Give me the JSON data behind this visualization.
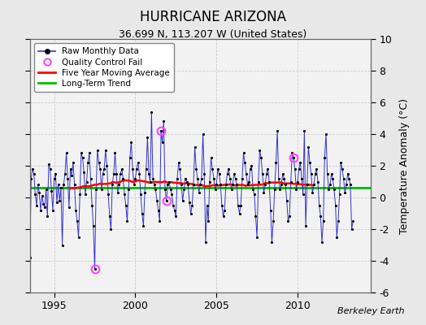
{
  "title": "HURRICANE ARIZONA",
  "subtitle": "36.699 N, 113.207 W (United States)",
  "ylabel": "Temperature Anomaly (°C)",
  "watermark": "Berkeley Earth",
  "ylim": [
    -6,
    10
  ],
  "xlim": [
    1993.5,
    2014.5
  ],
  "xticks": [
    1995,
    2000,
    2005,
    2010
  ],
  "yticks": [
    -6,
    -4,
    -2,
    0,
    2,
    4,
    6,
    8,
    10
  ],
  "long_term_trend": 0.6,
  "bg_color": "#e8e8e8",
  "plot_bg_color": "#f2f2f2",
  "raw_color": "#3333cc",
  "ma_color": "#ff0000",
  "trend_color": "#00bb00",
  "qc_color": "#ff44ff",
  "raw_monthly": [
    -3.8,
    1.2,
    1.8,
    1.5,
    0.2,
    -0.5,
    0.8,
    0.3,
    -0.8,
    0.1,
    -0.4,
    -0.6,
    0.5,
    -1.2,
    2.1,
    1.8,
    0.4,
    -0.8,
    1.2,
    1.5,
    -0.3,
    0.8,
    -0.2,
    0.6,
    -3.0,
    0.8,
    1.5,
    2.8,
    1.2,
    -0.6,
    1.8,
    1.4,
    2.2,
    0.8,
    -0.8,
    -1.5,
    -2.5,
    0.2,
    2.8,
    2.5,
    1.6,
    0.2,
    1.0,
    2.2,
    2.8,
    1.2,
    -0.5,
    -1.8,
    -4.5,
    0.5,
    3.0,
    2.2,
    1.8,
    0.5,
    1.5,
    1.8,
    3.0,
    2.0,
    0.2,
    -1.2,
    -2.0,
    0.8,
    1.5,
    2.8,
    1.5,
    0.3,
    0.8,
    1.5,
    1.8,
    1.2,
    0.2,
    -0.5,
    -1.5,
    0.5,
    2.5,
    3.5,
    1.8,
    0.8,
    1.2,
    1.8,
    2.2,
    1.5,
    0.2,
    -1.0,
    -1.8,
    0.3,
    1.8,
    3.8,
    1.5,
    1.0,
    5.4,
    1.2,
    0.8,
    0.5,
    -0.2,
    -0.8,
    -1.5,
    4.2,
    3.5,
    4.8,
    0.5,
    -0.2,
    0.8,
    1.0,
    0.5,
    0.2,
    -0.5,
    -0.8,
    -1.2,
    1.2,
    2.2,
    1.8,
    0.8,
    -0.2,
    0.5,
    1.2,
    1.0,
    0.8,
    -0.3,
    -1.0,
    -0.5,
    0.8,
    3.2,
    1.8,
    1.2,
    0.3,
    0.8,
    1.2,
    4.0,
    1.5,
    -2.8,
    -0.5,
    -1.5,
    1.0,
    2.5,
    1.8,
    1.2,
    0.5,
    0.8,
    1.8,
    1.5,
    0.8,
    -0.5,
    -1.2,
    -0.8,
    0.8,
    1.5,
    1.8,
    1.2,
    0.5,
    0.8,
    1.5,
    1.2,
    0.8,
    -0.5,
    -1.0,
    -0.5,
    1.2,
    2.8,
    2.2,
    1.5,
    0.8,
    1.0,
    1.8,
    2.0,
    0.5,
    0.2,
    -1.2,
    -2.5,
    1.0,
    3.0,
    2.5,
    1.5,
    0.3,
    0.8,
    1.5,
    1.8,
    1.0,
    -0.8,
    -2.8,
    -1.5,
    0.5,
    2.2,
    4.2,
    1.2,
    0.5,
    0.8,
    1.5,
    1.2,
    0.8,
    -0.2,
    -1.5,
    -1.2,
    1.0,
    2.8,
    2.5,
    1.8,
    0.5,
    1.0,
    1.8,
    2.2,
    1.2,
    0.2,
    4.2,
    -1.8,
    0.8,
    3.2,
    2.2,
    1.5,
    0.3,
    0.8,
    1.5,
    1.8,
    1.0,
    -0.5,
    -1.2,
    -2.8,
    -1.5,
    2.5,
    4.0,
    1.5,
    0.5,
    0.8,
    1.5,
    1.2,
    0.5,
    -0.5,
    -2.5,
    -1.5,
    0.2,
    2.2,
    1.8,
    1.2,
    0.3,
    0.8,
    1.5,
    1.2,
    0.8,
    -2.0,
    -1.5
  ],
  "qc_fail_indices": [
    48,
    97,
    101,
    195
  ],
  "start_year": 1993,
  "start_month": 7
}
